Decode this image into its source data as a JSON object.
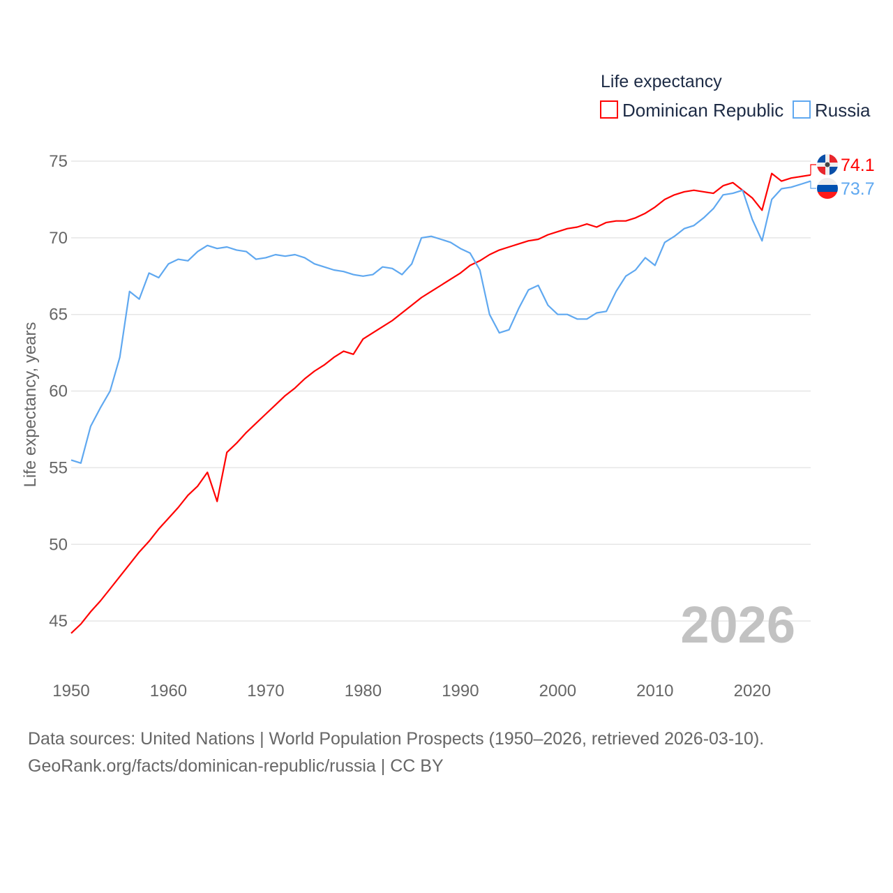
{
  "chart_data": {
    "type": "line",
    "title": "Life expectancy",
    "xlabel": "",
    "ylabel": "Life expectancy, years",
    "xlim": [
      1950,
      2026
    ],
    "ylim": [
      43.5,
      77
    ],
    "yticks": [
      45,
      50,
      55,
      60,
      65,
      70,
      75
    ],
    "xticks": [
      1950,
      1960,
      1970,
      1980,
      1990,
      2000,
      2010,
      2020
    ],
    "grid": true,
    "legend_position": "top-right",
    "current_year": "2026",
    "x_start": 1950,
    "series": [
      {
        "name": "Dominican Republic",
        "color": "#ff0000",
        "end_label": "74.1",
        "flag": "dominican-republic",
        "values": [
          44.2,
          44.8,
          45.6,
          46.3,
          47.1,
          47.9,
          48.7,
          49.5,
          50.2,
          51.0,
          51.7,
          52.4,
          53.2,
          53.8,
          54.7,
          52.8,
          56.0,
          56.6,
          57.3,
          57.9,
          58.5,
          59.1,
          59.7,
          60.2,
          60.8,
          61.3,
          61.7,
          62.2,
          62.6,
          62.4,
          63.4,
          63.8,
          64.2,
          64.6,
          65.1,
          65.6,
          66.1,
          66.5,
          66.9,
          67.3,
          67.7,
          68.2,
          68.5,
          68.9,
          69.2,
          69.4,
          69.6,
          69.8,
          69.9,
          70.2,
          70.4,
          70.6,
          70.7,
          70.9,
          70.7,
          71.0,
          71.1,
          71.1,
          71.3,
          71.6,
          72.0,
          72.5,
          72.8,
          73.0,
          73.1,
          73.0,
          72.9,
          73.4,
          73.6,
          73.1,
          72.6,
          71.8,
          74.2,
          73.7,
          73.9,
          74.0,
          74.1
        ]
      },
      {
        "name": "Russia",
        "color": "#5fa8f0",
        "end_label": "73.7",
        "flag": "russia",
        "values": [
          55.5,
          55.3,
          57.7,
          58.9,
          60.0,
          62.2,
          66.5,
          66.0,
          67.7,
          67.4,
          68.3,
          68.6,
          68.5,
          69.1,
          69.5,
          69.3,
          69.4,
          69.2,
          69.1,
          68.6,
          68.7,
          68.9,
          68.8,
          68.9,
          68.7,
          68.3,
          68.1,
          67.9,
          67.8,
          67.6,
          67.5,
          67.6,
          68.1,
          68.0,
          67.6,
          68.3,
          70.0,
          70.1,
          69.9,
          69.7,
          69.3,
          69.0,
          67.9,
          65.0,
          63.8,
          64.0,
          65.4,
          66.6,
          66.9,
          65.6,
          65.0,
          65.0,
          64.7,
          64.7,
          65.1,
          65.2,
          66.5,
          67.5,
          67.9,
          68.7,
          68.2,
          69.7,
          70.1,
          70.6,
          70.8,
          71.3,
          71.9,
          72.8,
          72.9,
          73.1,
          71.2,
          69.8,
          72.5,
          73.2,
          73.3,
          73.5,
          73.7
        ]
      }
    ]
  },
  "footer": {
    "line1": "Data sources: United Nations | World Population Prospects (1950–2026, retrieved 2026-03-10).",
    "line2": "GeoRank.org/facts/dominican-republic/russia | CC BY"
  }
}
